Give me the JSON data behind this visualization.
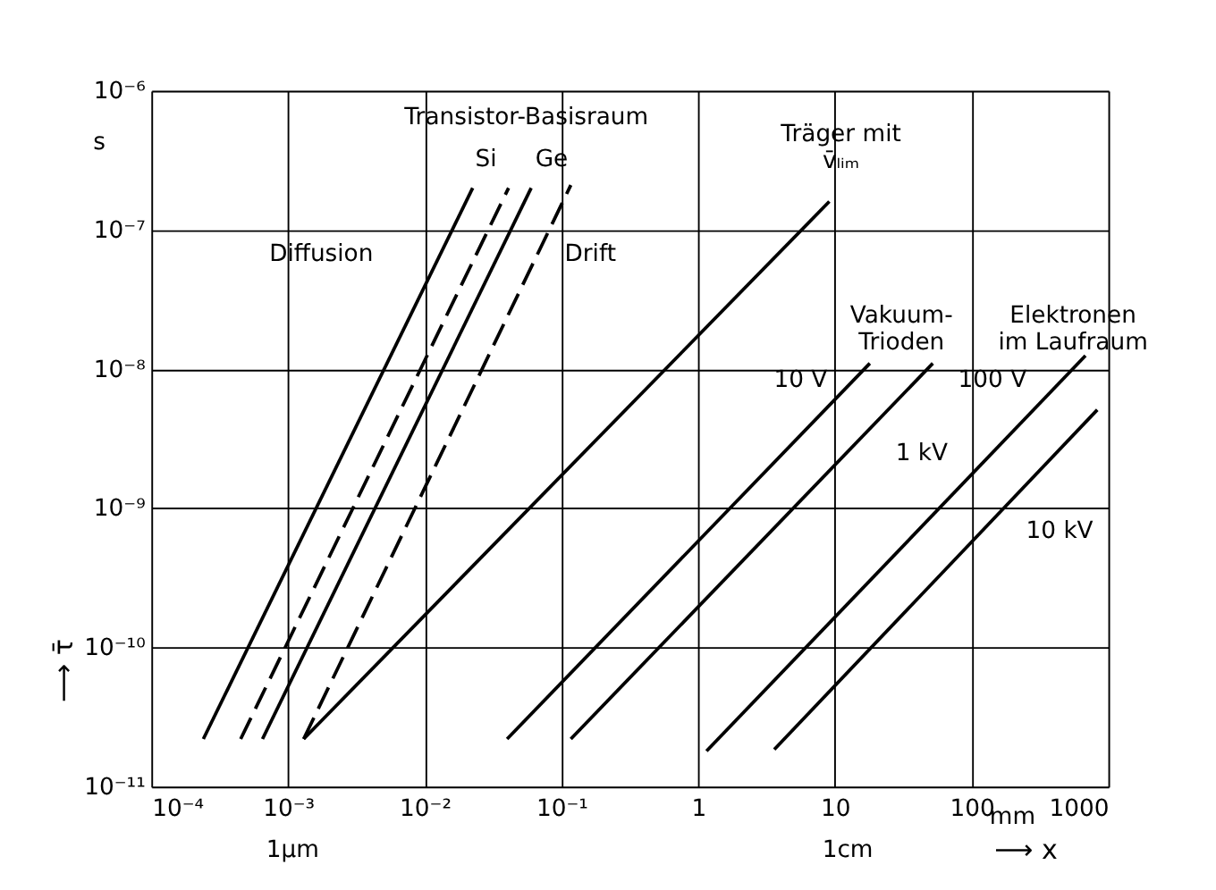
{
  "chart_data": {
    "type": "line",
    "xlabel": "⟶ x",
    "ylabel": "⟶ τ̄",
    "xlim": [
      0.0001,
      1000
    ],
    "ylim": [
      1e-11,
      1e-06
    ],
    "log": "xy",
    "grid": true,
    "marker": "none",
    "xticks": [
      {
        "value": 0.0001,
        "label": "10⁻⁴"
      },
      {
        "value": 0.001,
        "label": "10⁻³"
      },
      {
        "value": 0.01,
        "label": "10⁻²"
      },
      {
        "value": 0.1,
        "label": "10⁻¹"
      },
      1,
      10,
      100,
      1000
    ],
    "yticks": [
      {
        "value": 1e-11,
        "label": "10⁻¹¹"
      },
      {
        "value": 1e-10,
        "label": "10⁻¹⁰"
      },
      {
        "value": 1e-09,
        "label": "10⁻⁹"
      },
      {
        "value": 1e-08,
        "label": "10⁻⁸"
      },
      {
        "value": 1e-07,
        "label": "10⁻⁷"
      },
      {
        "value": 1e-06,
        "label": "10⁻⁶"
      }
    ],
    "series": [
      {
        "color": "#000000",
        "line_style": "solid",
        "x": [
          0.00024,
          0.0224
        ],
        "values": [
          2.2e-11,
          2e-07
        ]
      },
      {
        "color": "#000000",
        "line_style": "dashed",
        "x": [
          0.00045,
          0.041
        ],
        "values": [
          2.2e-11,
          2e-07
        ]
      },
      {
        "color": "#000000",
        "line_style": "solid",
        "x": [
          0.00065,
          0.06
        ],
        "values": [
          2.2e-11,
          2e-07
        ]
      },
      {
        "color": "#000000",
        "line_style": "dashed",
        "x": [
          0.0013,
          0.117
        ],
        "values": [
          2.2e-11,
          2.1e-07
        ]
      },
      {
        "color": "#000000",
        "line_style": "solid",
        "x": [
          0.0013,
          9.1
        ],
        "values": [
          2.2e-11,
          1.6e-07
        ]
      },
      {
        "color": "#000000",
        "line_style": "solid",
        "x": [
          0.04,
          18
        ],
        "values": [
          2.2e-11,
          1.1e-08
        ]
      },
      {
        "color": "#000000",
        "line_style": "solid",
        "x": [
          0.117,
          52
        ],
        "values": [
          2.2e-11,
          1.1e-08
        ]
      },
      {
        "color": "#000000",
        "line_style": "solid",
        "x": [
          1.15,
          680
        ],
        "values": [
          1.8e-11,
          1.25e-08
        ]
      },
      {
        "color": "#000000",
        "line_style": "solid",
        "x": [
          3.6,
          830
        ],
        "values": [
          1.85e-11,
          5.1e-09
        ]
      }
    ],
    "annotations": [
      "Transistor-Basisraum",
      "Si",
      "Ge",
      "Diffusion",
      "Drift",
      "Träger mit\nv̄ₗᵢₘ",
      "Vakuum-\nTrioden",
      "Elektronen\nim Laufraum",
      "10 V",
      "100 V",
      "1 kV",
      "10 kV",
      "s",
      "mm",
      "1µm",
      "1cm"
    ]
  }
}
